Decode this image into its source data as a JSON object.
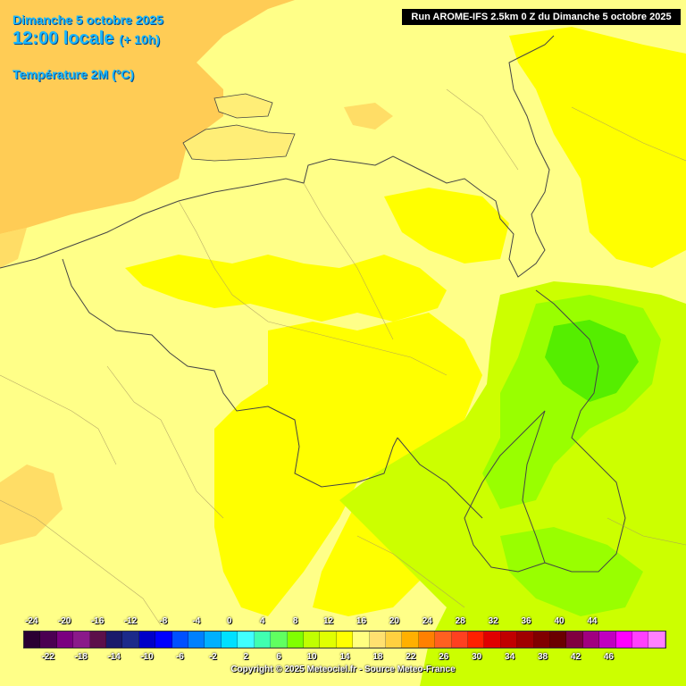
{
  "header": {
    "date": "Dimanche 5 octobre 2025",
    "time": "12:00 locale",
    "offset": "(+ 10h)",
    "parameter": "Température 2M (°C)"
  },
  "run_banner": "Run AROME-IFS 2.5km 0 Z du Dimanche 5 octobre 2025",
  "legend": {
    "upper_labels": [
      "-24",
      "-20",
      "-16",
      "-12",
      "-8",
      "-4",
      "0",
      "4",
      "8",
      "12",
      "16",
      "20",
      "24",
      "28",
      "32",
      "36",
      "40",
      "44"
    ],
    "lower_labels": [
      "-22",
      "-18",
      "-14",
      "-10",
      "-6",
      "-2",
      "2",
      "6",
      "10",
      "14",
      "18",
      "22",
      "26",
      "30",
      "34",
      "38",
      "42",
      "46"
    ],
    "colors": [
      "#2a0033",
      "#4b0052",
      "#7a0080",
      "#8a1a8a",
      "#5c0f4a",
      "#1a1a6b",
      "#1c2a8a",
      "#0000c8",
      "#0000ff",
      "#0050ff",
      "#0080ff",
      "#00b0ff",
      "#00e0ff",
      "#40ffff",
      "#40ffb0",
      "#60ff60",
      "#80ff00",
      "#c0ff00",
      "#e0ff00",
      "#ffff00",
      "#ffff80",
      "#ffe070",
      "#ffd040",
      "#ffb000",
      "#ff8000",
      "#ff6020",
      "#ff4020",
      "#ff2000",
      "#e00000",
      "#c00000",
      "#a00000",
      "#800000",
      "#6a0000",
      "#800040",
      "#a00080",
      "#c000c0",
      "#ff00ff",
      "#ff40ff",
      "#ff80ff"
    ]
  },
  "copyright": "Copyright © 2025 Meteociel.fr - Source Meteo-France",
  "map_colors": {
    "sea_warm": "#ffcc55",
    "land_pale": "#ffff88",
    "land_yellow": "#ffff00",
    "green_light": "#ccff00",
    "green_mid": "#99ff00",
    "green_dark": "#55ee00",
    "border": "#444444"
  }
}
